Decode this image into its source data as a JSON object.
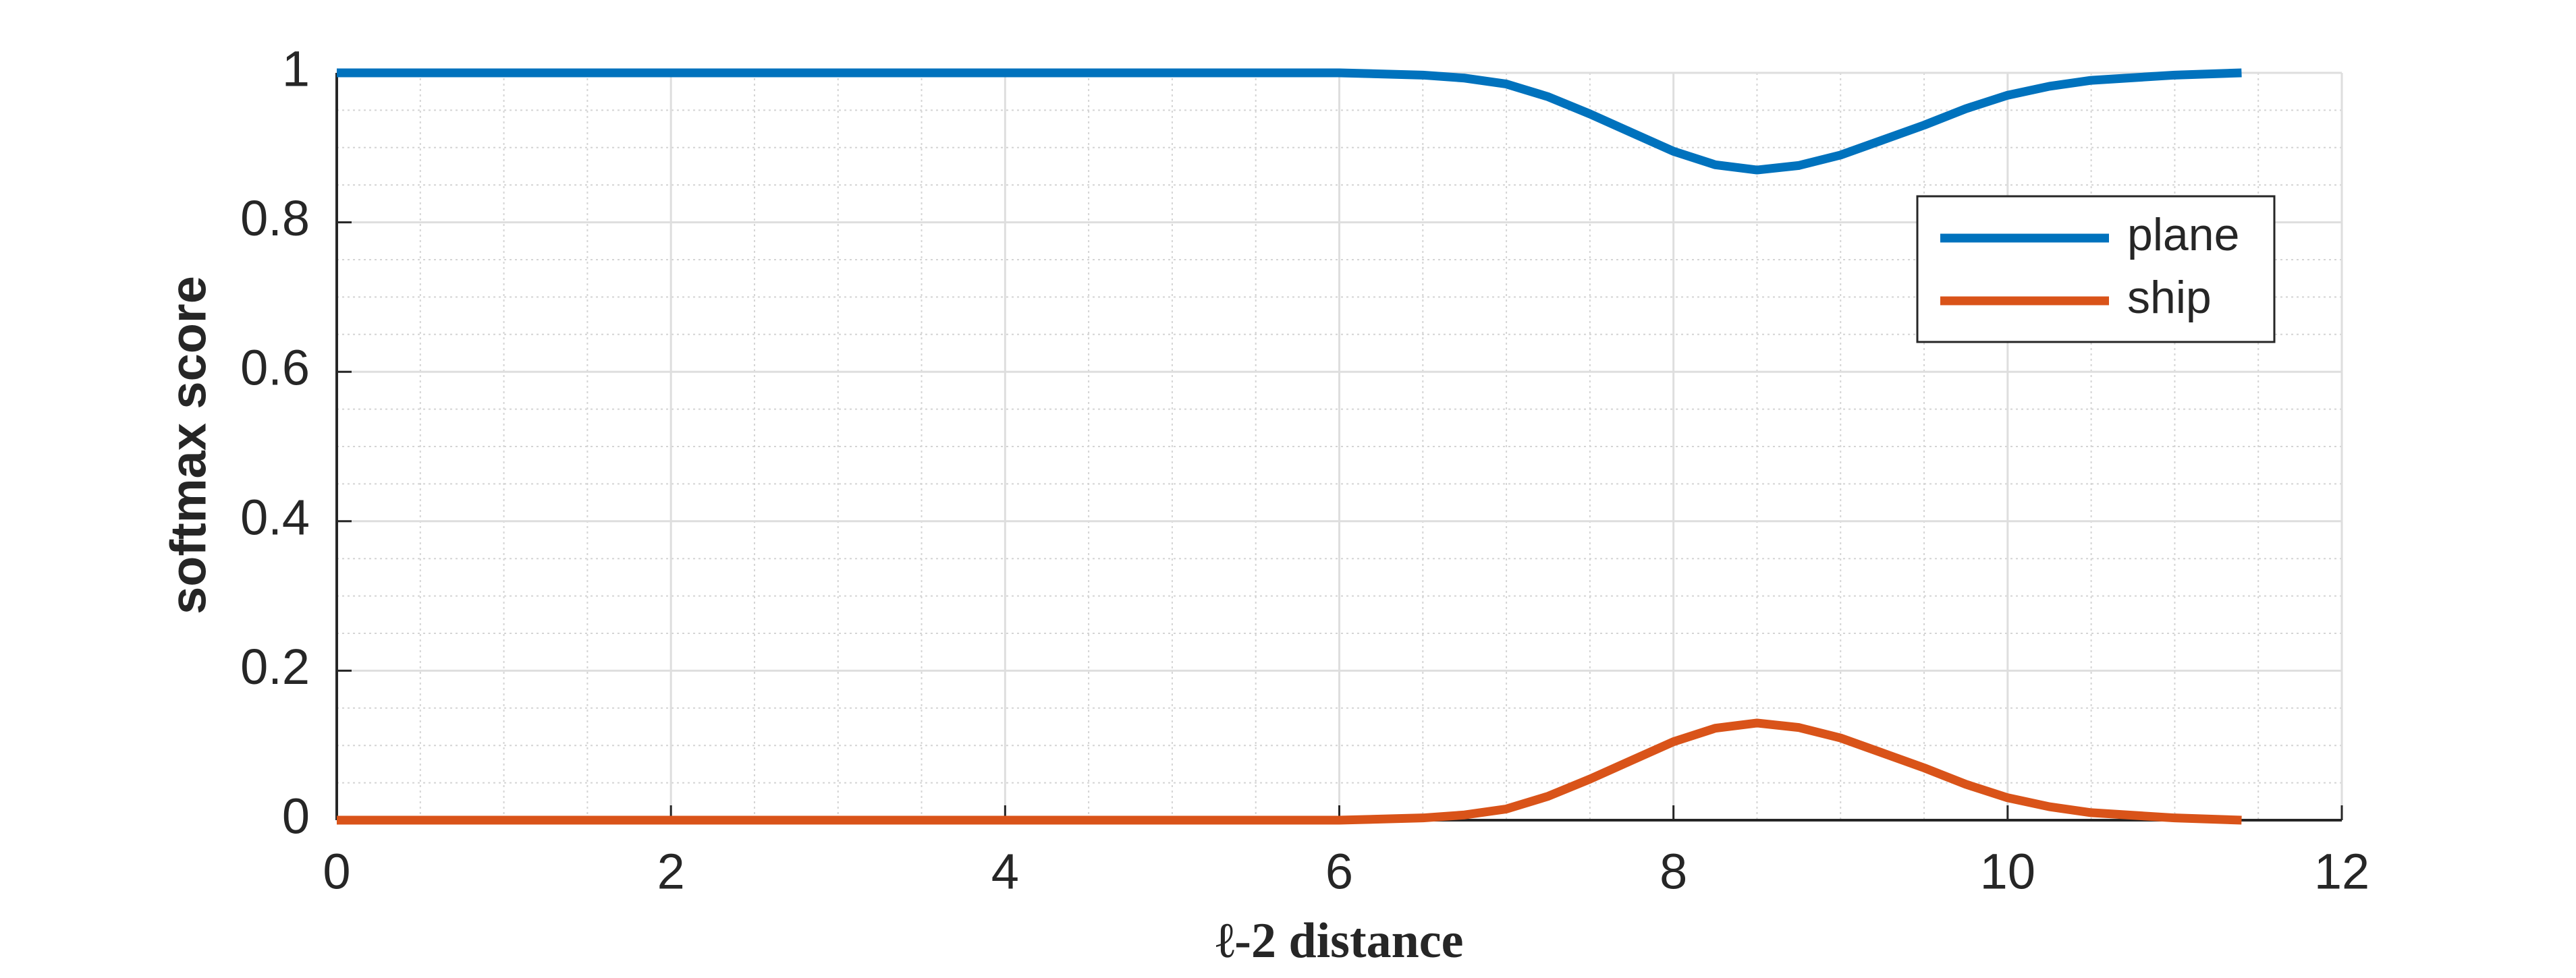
{
  "chart_data": {
    "type": "line",
    "xlabel": "ℓ-2 distance",
    "ylabel": "softmax score",
    "x": [
      0,
      1,
      2,
      3,
      4,
      5,
      6,
      6.5,
      6.75,
      7,
      7.25,
      7.5,
      7.75,
      8,
      8.25,
      8.5,
      8.75,
      9,
      9.25,
      9.5,
      9.75,
      10,
      10.25,
      10.5,
      11,
      11.4
    ],
    "series": [
      {
        "name": "plane",
        "color": "#0072BD",
        "values": [
          1,
          1,
          1,
          1,
          1,
          1,
          1,
          0.997,
          0.993,
          0.985,
          0.968,
          0.945,
          0.92,
          0.895,
          0.877,
          0.87,
          0.876,
          0.89,
          0.91,
          0.93,
          0.952,
          0.97,
          0.982,
          0.99,
          0.997,
          1
        ]
      },
      {
        "name": "ship",
        "color": "#D95319",
        "values": [
          0,
          0,
          0,
          0,
          0,
          0,
          0,
          0.003,
          0.007,
          0.015,
          0.032,
          0.055,
          0.08,
          0.105,
          0.123,
          0.13,
          0.124,
          0.11,
          0.09,
          0.07,
          0.048,
          0.03,
          0.018,
          0.01,
          0.003,
          0
        ]
      }
    ],
    "xlim": [
      0,
      12
    ],
    "xticks": [
      0,
      2,
      4,
      6,
      8,
      10,
      12
    ],
    "ylim": [
      0,
      1
    ],
    "yticks": [
      0,
      0.2,
      0.4,
      0.6,
      0.8,
      1
    ],
    "grid": true,
    "minor_grid": true,
    "legend": "upper right"
  }
}
